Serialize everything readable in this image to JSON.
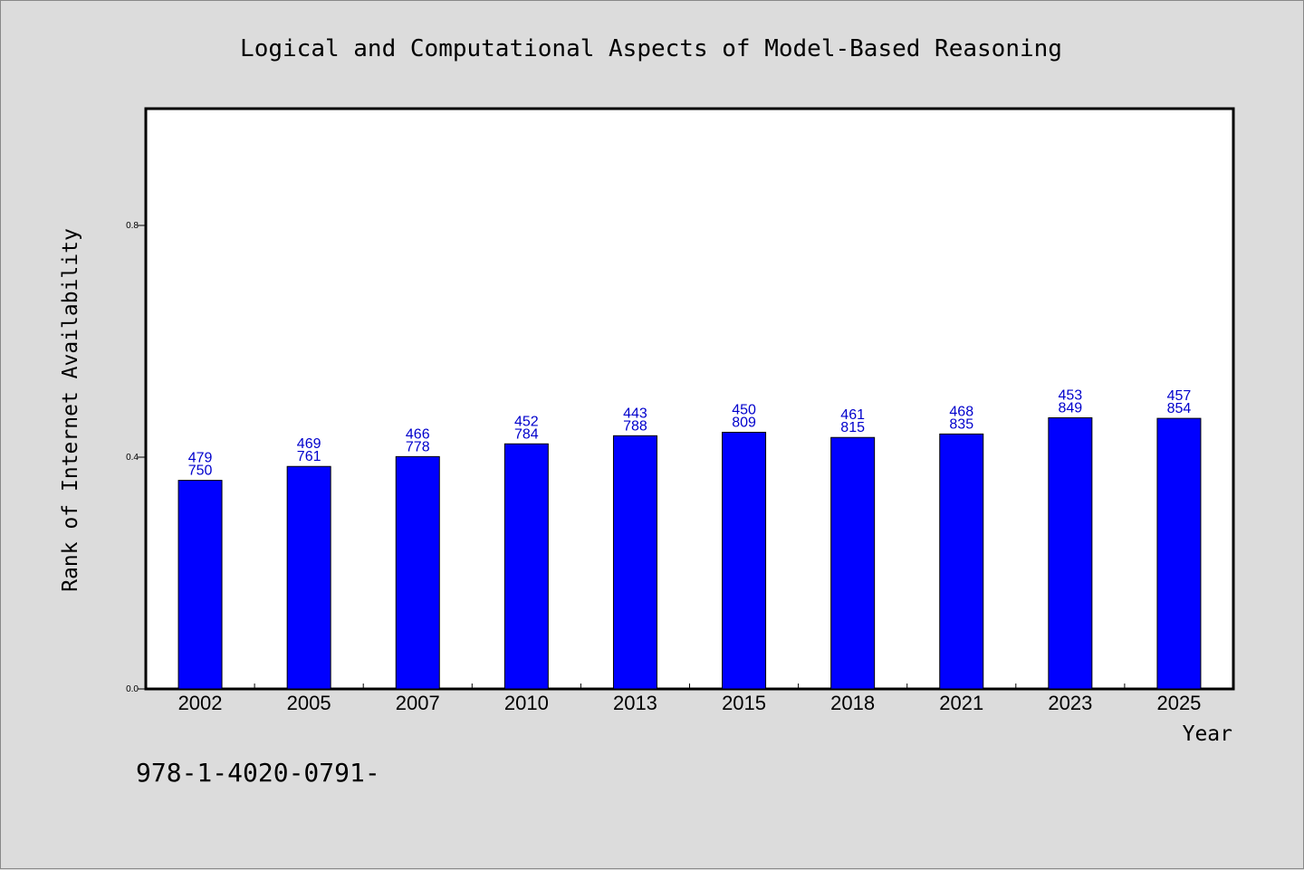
{
  "chart_data": {
    "type": "bar",
    "title": "Logical and Computational Aspects of Model-Based Reasoning",
    "xlabel": "Year",
    "ylabel": "Rank of Internet Availability",
    "categories": [
      "2002",
      "2005",
      "2007",
      "2010",
      "2013",
      "2015",
      "2018",
      "2021",
      "2023",
      "2025"
    ],
    "values": [
      0.36,
      0.384,
      0.401,
      0.423,
      0.437,
      0.443,
      0.434,
      0.44,
      0.468,
      0.467
    ],
    "labels_top": [
      "479",
      "469",
      "466",
      "452",
      "443",
      "450",
      "461",
      "468",
      "453",
      "457"
    ],
    "labels_bottom": [
      "750",
      "761",
      "778",
      "784",
      "788",
      "809",
      "815",
      "835",
      "849",
      "854"
    ],
    "yticks": [
      "0.0",
      "0.4",
      "0.8"
    ],
    "ylim": [
      0,
      1.0
    ],
    "bar_color": "#0000ff",
    "label_color": "#0000cc",
    "grid": false,
    "legend": "none"
  },
  "footer": "978-1-4020-0791-"
}
